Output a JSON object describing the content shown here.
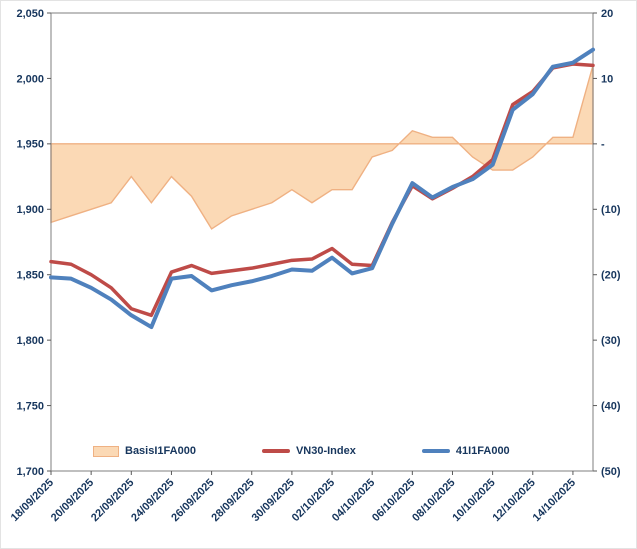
{
  "chart_data": {
    "type": "line",
    "title": "",
    "n_points": 28,
    "x_dates": [
      "18/09/2025",
      "19/09/2025",
      "20/09/2025",
      "21/09/2025",
      "22/09/2025",
      "23/09/2025",
      "24/09/2025",
      "25/09/2025",
      "26/09/2025",
      "27/09/2025",
      "28/09/2025",
      "29/09/2025",
      "30/09/2025",
      "01/10/2025",
      "02/10/2025",
      "03/10/2025",
      "04/10/2025",
      "05/10/2025",
      "06/10/2025",
      "07/10/2025",
      "08/10/2025",
      "09/10/2025",
      "10/10/2025",
      "11/10/2025",
      "12/10/2025",
      "13/10/2025",
      "14/10/2025",
      "15/10/2025"
    ],
    "x_tick_labels": [
      "18/09/2025",
      "20/09/2025",
      "22/09/2025",
      "24/09/2025",
      "26/09/2025",
      "28/09/2025",
      "30/09/2025",
      "02/10/2025",
      "04/10/2025",
      "06/10/2025",
      "08/10/2025",
      "10/10/2025",
      "12/10/2025",
      "14/10/2025"
    ],
    "x_tick_indices": [
      0,
      2,
      4,
      6,
      8,
      10,
      12,
      14,
      16,
      18,
      20,
      22,
      24,
      26
    ],
    "left_axis": {
      "min": 1700,
      "max": 2050,
      "step": 50,
      "tick_labels_top_to_bottom": [
        "2,050",
        "2,000",
        "1,950",
        "1,900",
        "1,850",
        "1,800",
        "1,750",
        "1,700"
      ]
    },
    "right_axis": {
      "min": -50,
      "max": 20,
      "step": 10,
      "zero_shown_as": "-",
      "negative_format": "parentheses",
      "tick_labels_top_to_bottom": [
        "20",
        "10",
        "-",
        "(10)",
        "(20)",
        "(30)",
        "(40)",
        "(50)"
      ]
    },
    "baseline_right_value": 0,
    "series": [
      {
        "name": "BasisI1FA000",
        "type": "area",
        "axis": "right",
        "fill": "#FBD9B5",
        "stroke": "#EFB183",
        "values": [
          -12,
          -11,
          -10,
          -9,
          -5,
          -9,
          -5,
          -8,
          -13,
          -11,
          -10,
          -9,
          -7,
          -9,
          -7,
          -7,
          -2,
          -1,
          2,
          1,
          1,
          -2,
          -4,
          -4,
          -2,
          1,
          1,
          12
        ]
      },
      {
        "name": "VN30-Index",
        "type": "line",
        "axis": "left",
        "color": "#BE4B48",
        "width": 3.5,
        "values": [
          1860,
          1858,
          1850,
          1840,
          1824,
          1819,
          1852,
          1857,
          1851,
          1853,
          1855,
          1858,
          1861,
          1862,
          1870,
          1858,
          1857,
          1890,
          1918,
          1908,
          1916,
          1925,
          1938,
          1980,
          1990,
          2008,
          2011,
          2010
        ]
      },
      {
        "name": "41I1FA000",
        "type": "line",
        "axis": "left",
        "color": "#4F81BD",
        "width": 4,
        "values": [
          1848,
          1847,
          1840,
          1831,
          1819,
          1810,
          1847,
          1849,
          1838,
          1842,
          1845,
          1849,
          1854,
          1853,
          1863,
          1851,
          1855,
          1889,
          1920,
          1909,
          1917,
          1923,
          1934,
          1976,
          1988,
          2009,
          2012,
          2022
        ]
      }
    ],
    "legend": {
      "position": "bottom-inside",
      "items": [
        {
          "label": "BasisI1FA000",
          "swatch": "area"
        },
        {
          "label": "VN30-Index",
          "swatch": "line"
        },
        {
          "label": "41I1FA000",
          "swatch": "line"
        }
      ]
    },
    "style": {
      "text_color": "#17365D",
      "frame_color": "#7F7F7F",
      "tick_color": "#595959",
      "background": "#FFFFFF"
    }
  }
}
